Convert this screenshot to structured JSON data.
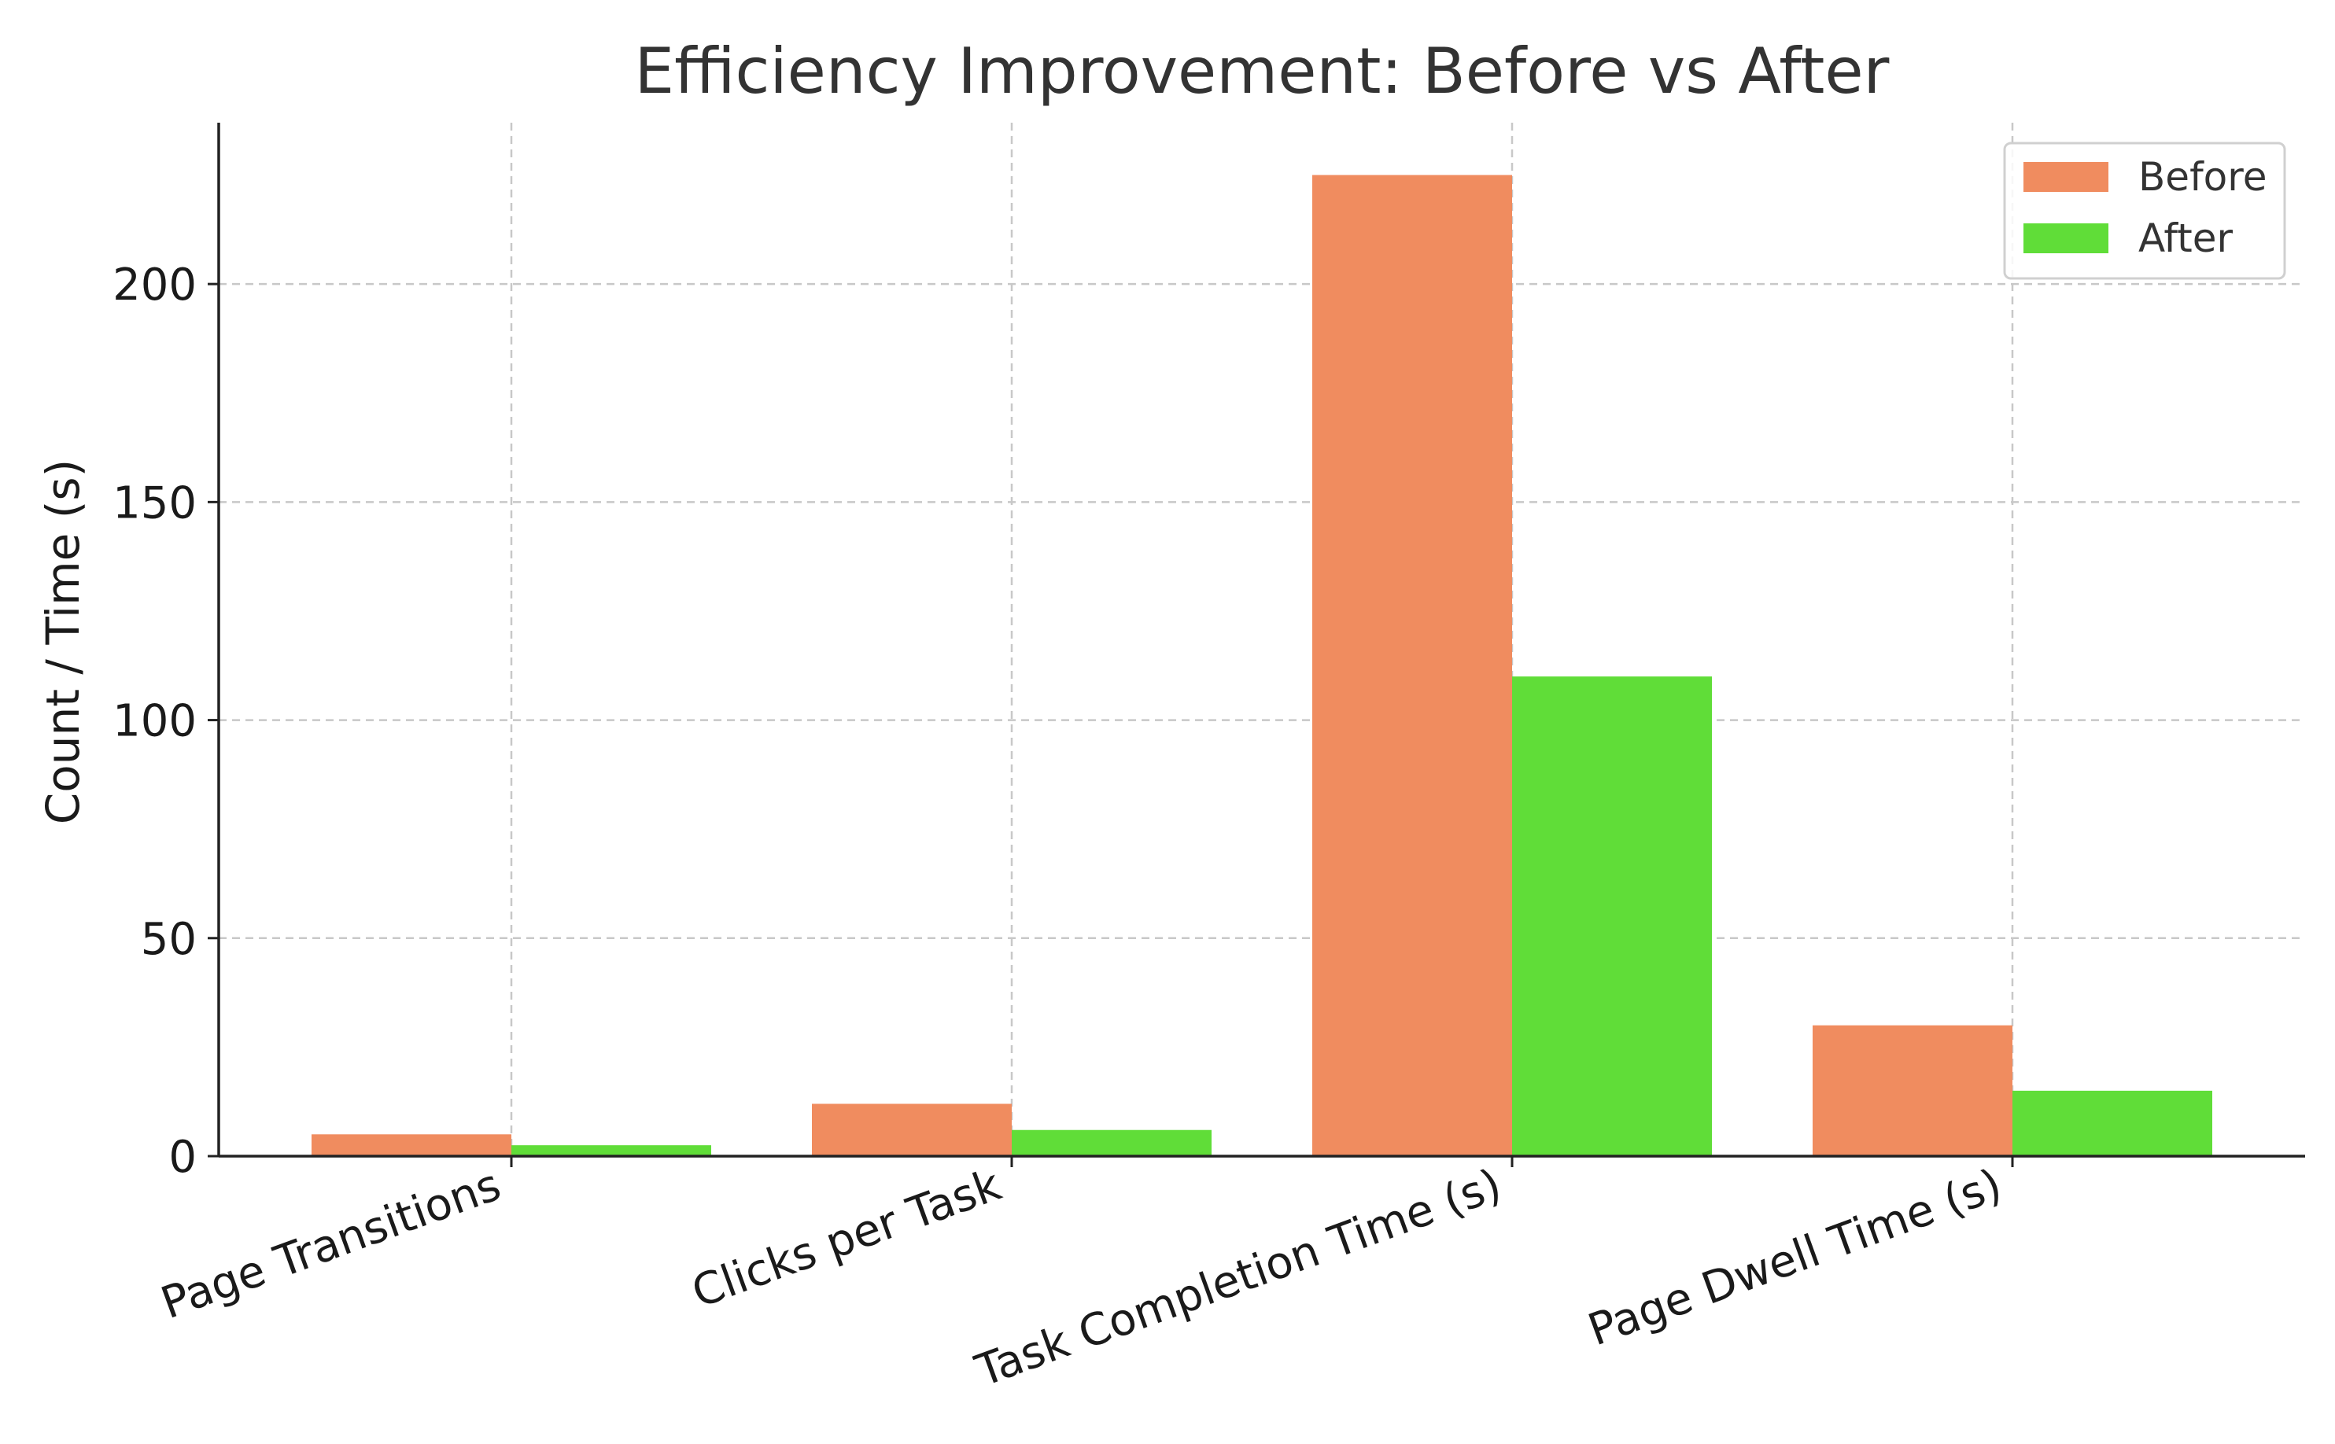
{
  "chart_data": {
    "type": "bar",
    "title": "Efficiency Improvement: Before vs After",
    "xlabel": "",
    "ylabel": "Count / Time (s)",
    "categories": [
      "Page Transitions",
      "Clicks per Task",
      "Task Completion Time (s)",
      "Page Dwell Time (s)"
    ],
    "series": [
      {
        "name": "Before",
        "values": [
          5,
          12,
          225,
          30
        ],
        "color": "#F08C5F"
      },
      {
        "name": "After",
        "values": [
          2.5,
          6,
          110,
          15
        ],
        "color": "#60DD38"
      }
    ],
    "ylim": [
      0,
      237
    ],
    "yticks": [
      0,
      50,
      100,
      150,
      200
    ],
    "grid": true,
    "legend_position": "top-right"
  }
}
